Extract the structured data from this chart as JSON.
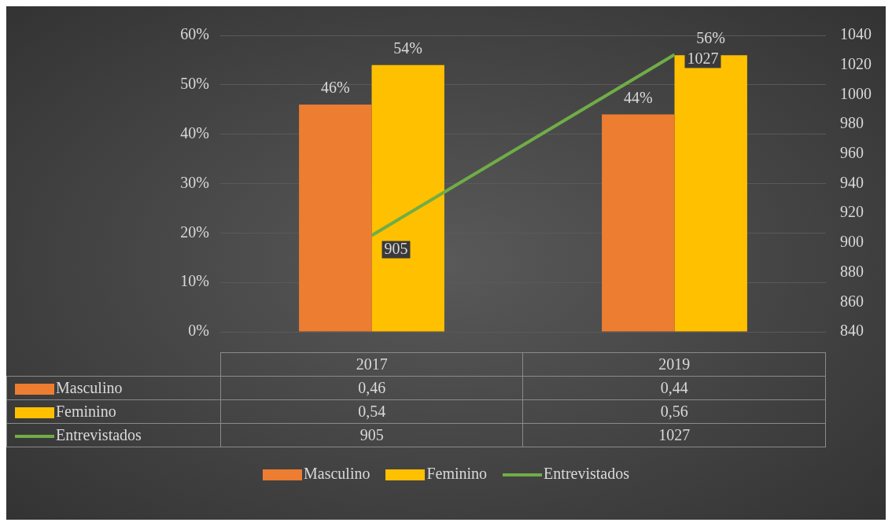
{
  "chart_data": {
    "type": "bar",
    "categories": [
      "2017",
      "2019"
    ],
    "series": [
      {
        "name": "Masculino",
        "color": "#ed7d31",
        "values": [
          46,
          44
        ],
        "value_labels": [
          "46%",
          "44%"
        ]
      },
      {
        "name": "Feminino",
        "color": "#ffc000",
        "values": [
          54,
          56
        ],
        "value_labels": [
          "54%",
          "56%"
        ]
      },
      {
        "name": "Entrevistados",
        "type": "line",
        "axis": "y2",
        "color": "#70ad47",
        "values": [
          905,
          1027
        ],
        "value_labels": [
          "905",
          "1027"
        ]
      }
    ],
    "ylim": [
      0,
      60
    ],
    "yticks": [
      {
        "value": 0,
        "label": "0%"
      },
      {
        "value": 10,
        "label": "10%"
      },
      {
        "value": 20,
        "label": "20%"
      },
      {
        "value": 30,
        "label": "30%"
      },
      {
        "value": 40,
        "label": "40%"
      },
      {
        "value": 50,
        "label": "50%"
      },
      {
        "value": 60,
        "label": "60%"
      }
    ],
    "y2lim": [
      840,
      1040
    ],
    "y2ticks": [
      840,
      860,
      880,
      900,
      920,
      940,
      960,
      980,
      1000,
      1020,
      1040
    ],
    "grid": "y",
    "legend": "bottom",
    "marker": "none",
    "annotations": [
      "0,46",
      "0,44",
      "0,54",
      "0,56",
      "905",
      "1027"
    ]
  }
}
